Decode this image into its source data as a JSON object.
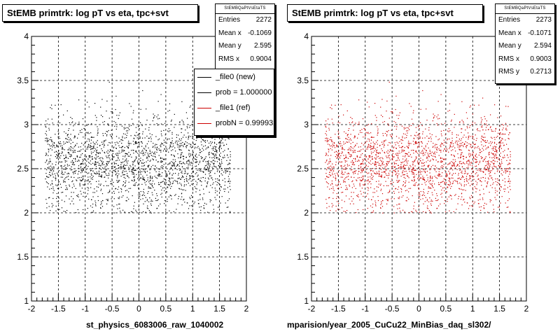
{
  "chart_data": [
    {
      "type": "scatter",
      "title": "StEMB primtrk: log pT vs eta, tpc+svt",
      "xlabel": "st_physics_6083006_raw_1040002",
      "ylabel": "",
      "xlim": [
        -2,
        2
      ],
      "ylim": [
        1,
        4
      ],
      "x_ticks": [
        "-2",
        "-1.5",
        "-1",
        "-0.5",
        "0",
        "0.5",
        "1",
        "1.5",
        "2"
      ],
      "y_ticks": [
        "1",
        "1.5",
        "2",
        "2.5",
        "3",
        "3.5",
        "4"
      ],
      "grid": true,
      "point_color": "#000000",
      "point_count": 2272,
      "x_range": [
        -1.75,
        1.7
      ],
      "y_range": [
        2.0,
        3.5
      ],
      "stats": {
        "name": "StEMBQaPtVsEtaTS",
        "rows": [
          {
            "label": "Entries",
            "value": "2272"
          },
          {
            "label": "Mean x",
            "value": "-0.1069"
          },
          {
            "label": "Mean y",
            "value": "2.595"
          },
          {
            "label": "RMS x",
            "value": "0.9004"
          }
        ]
      },
      "legend": [
        {
          "label": "_file0 (new)",
          "color": "#000000"
        },
        {
          "label": "prob = 1.000000",
          "color": "#000000"
        },
        {
          "label": "_file1 (ref)",
          "color": "#cc0000"
        },
        {
          "label": "probN = 0.999932",
          "color": "#cc0000"
        }
      ]
    },
    {
      "type": "scatter",
      "title": "StEMB primtrk: log pT vs eta, tpc+svt",
      "xlabel": "mparision/year_2005_CuCu22_MinBias_daq_sl302/",
      "ylabel": "",
      "xlim": [
        -2,
        2
      ],
      "ylim": [
        1,
        4
      ],
      "x_ticks": [
        "-2",
        "-1.5",
        "-1",
        "-0.5",
        "0",
        "0.5",
        "1",
        "1.5",
        "2"
      ],
      "y_ticks": [
        "1",
        "1.5",
        "2",
        "2.5",
        "3",
        "3.5",
        "4"
      ],
      "grid": true,
      "point_color": "#cc0000",
      "point_count": 2273,
      "x_range": [
        -1.75,
        1.7
      ],
      "y_range": [
        2.0,
        3.5
      ],
      "stats": {
        "name": "StEMBQaPtVsEtaTS",
        "rows": [
          {
            "label": "Entries",
            "value": "2273"
          },
          {
            "label": "Mean x",
            "value": "-0.1071"
          },
          {
            "label": "Mean y",
            "value": "2.594"
          },
          {
            "label": "RMS x",
            "value": "0.9003"
          },
          {
            "label": "RMS y",
            "value": "0.2713"
          }
        ]
      }
    }
  ]
}
